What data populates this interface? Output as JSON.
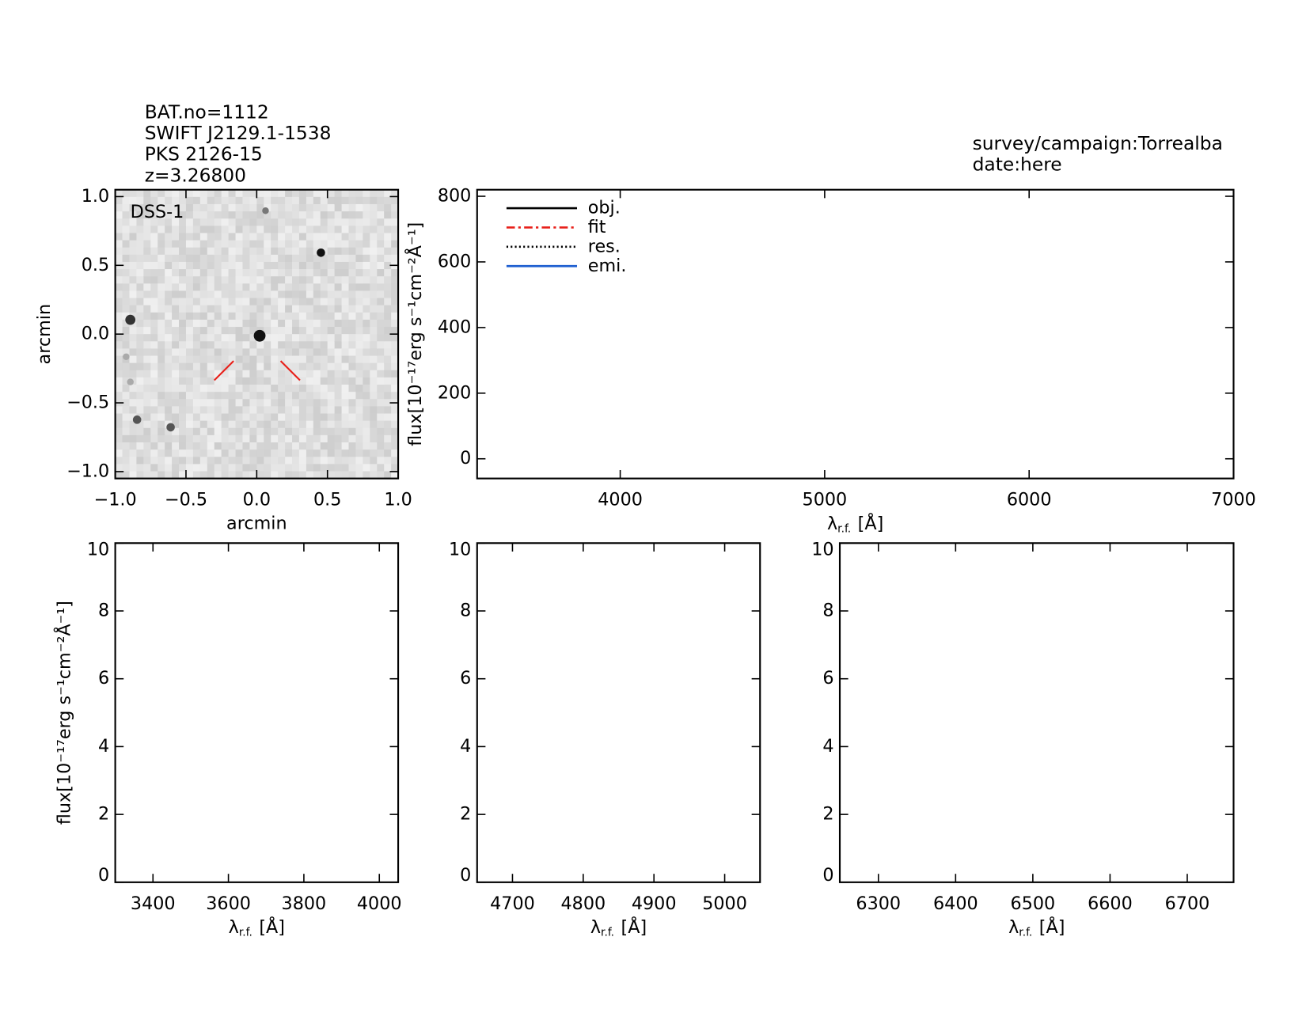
{
  "header": {
    "lines": [
      "BAT.no=1112",
      "SWIFT J2129.1-1538",
      "PKS 2126-15",
      "z=3.26800"
    ],
    "survey": "survey/campaign:Torrealba",
    "date": "date:here"
  },
  "chart_data": [
    {
      "type": "image",
      "title": "DSS-1",
      "xlabel": "arcmin",
      "ylabel": "arcmin",
      "xlim": [
        -1,
        1
      ],
      "ylim": [
        -1.05,
        1.05
      ],
      "xticks": [
        {
          "value": -1,
          "label": "−1.0"
        },
        {
          "value": -0.5,
          "label": "−0.5"
        },
        {
          "value": 0,
          "label": "0.0"
        },
        {
          "value": 0.5,
          "label": "0.5"
        },
        {
          "value": 1,
          "label": "1.0"
        }
      ],
      "yticks": [
        {
          "value": -1,
          "label": "−1.0"
        },
        {
          "value": -0.5,
          "label": "−0.5"
        },
        {
          "value": 0,
          "label": "0.0"
        },
        {
          "value": 0.5,
          "label": "0.5"
        },
        {
          "value": 1,
          "label": "1.0"
        }
      ]
    },
    {
      "type": "line",
      "xlabel": {
        "symbol": "λ",
        "subscript": "r.f.",
        "unit": "[Å]"
      },
      "ylabel": "flux[10⁻¹⁷erg s⁻¹cm⁻²Å⁻¹]",
      "xlim": [
        3300,
        7000
      ],
      "ylim": [
        -60,
        820
      ],
      "xticks": [
        4000,
        5000,
        6000,
        7000
      ],
      "yticks": [
        0,
        200,
        400,
        600,
        800
      ],
      "series": [
        {
          "name": "obj.",
          "color": "#000000",
          "linestyle": "solid",
          "values": []
        },
        {
          "name": "fit",
          "color": "#e8201a",
          "linestyle": "dashdot",
          "values": []
        },
        {
          "name": "res.",
          "color": "#000000",
          "linestyle": "dotted",
          "values": []
        },
        {
          "name": "emi.",
          "color": "#1f5fd0",
          "linestyle": "solid",
          "values": []
        }
      ]
    },
    {
      "type": "line",
      "xlabel": {
        "symbol": "λ",
        "subscript": "r.f.",
        "unit": "[Å]"
      },
      "ylabel": "flux[10⁻¹⁷erg s⁻¹cm⁻²Å⁻¹]",
      "xlim": [
        3300,
        4050
      ],
      "ylim": [
        0,
        10
      ],
      "xticks": [
        3400,
        3600,
        3800,
        4000
      ],
      "yticks": [
        0,
        2,
        4,
        6,
        8,
        10
      ]
    },
    {
      "type": "line",
      "xlabel": {
        "symbol": "λ",
        "subscript": "r.f.",
        "unit": "[Å]"
      },
      "xlim": [
        4650,
        5050
      ],
      "ylim": [
        0,
        10
      ],
      "xticks": [
        4700,
        4800,
        4900,
        5000
      ],
      "yticks": [
        0,
        2,
        4,
        6,
        8,
        10
      ]
    },
    {
      "type": "line",
      "xlabel": {
        "symbol": "λ",
        "subscript": "r.f.",
        "unit": "[Å]"
      },
      "xlim": [
        6250,
        6760
      ],
      "ylim": [
        0,
        10
      ],
      "xticks": [
        6300,
        6400,
        6500,
        6600,
        6700
      ],
      "yticks": [
        0,
        2,
        4,
        6,
        8,
        10
      ]
    }
  ]
}
